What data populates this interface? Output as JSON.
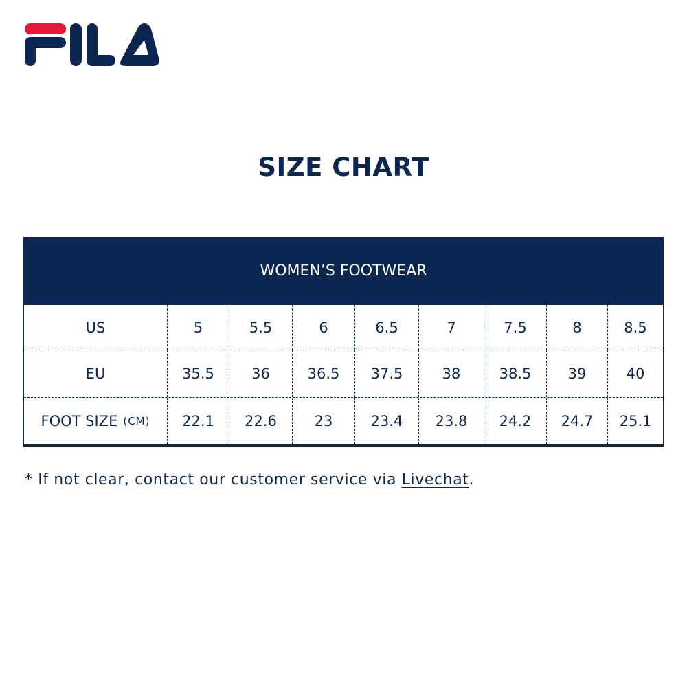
{
  "brand": {
    "logo_text": "FILA",
    "colors": {
      "navy": "#0b2650",
      "red": "#e31937"
    }
  },
  "title": "SIZE CHART",
  "table": {
    "header": "WOMEN’S FOOTWEAR",
    "rows": [
      {
        "label": "US",
        "label_unit": "",
        "values": [
          "5",
          "5.5",
          "6",
          "6.5",
          "7",
          "7.5",
          "8",
          "8.5"
        ]
      },
      {
        "label": "EU",
        "label_unit": "",
        "values": [
          "35.5",
          "36",
          "36.5",
          "37.5",
          "38",
          "38.5",
          "39",
          "40"
        ]
      },
      {
        "label": "FOOT SIZE",
        "label_unit": "(CM)",
        "values": [
          "22.1",
          "22.6",
          "23",
          "23.4",
          "23.8",
          "24.2",
          "24.7",
          "25.1"
        ]
      }
    ]
  },
  "note": {
    "text": "* If not clear, contact our customer service via ",
    "link": "Livechat",
    "end": "."
  }
}
